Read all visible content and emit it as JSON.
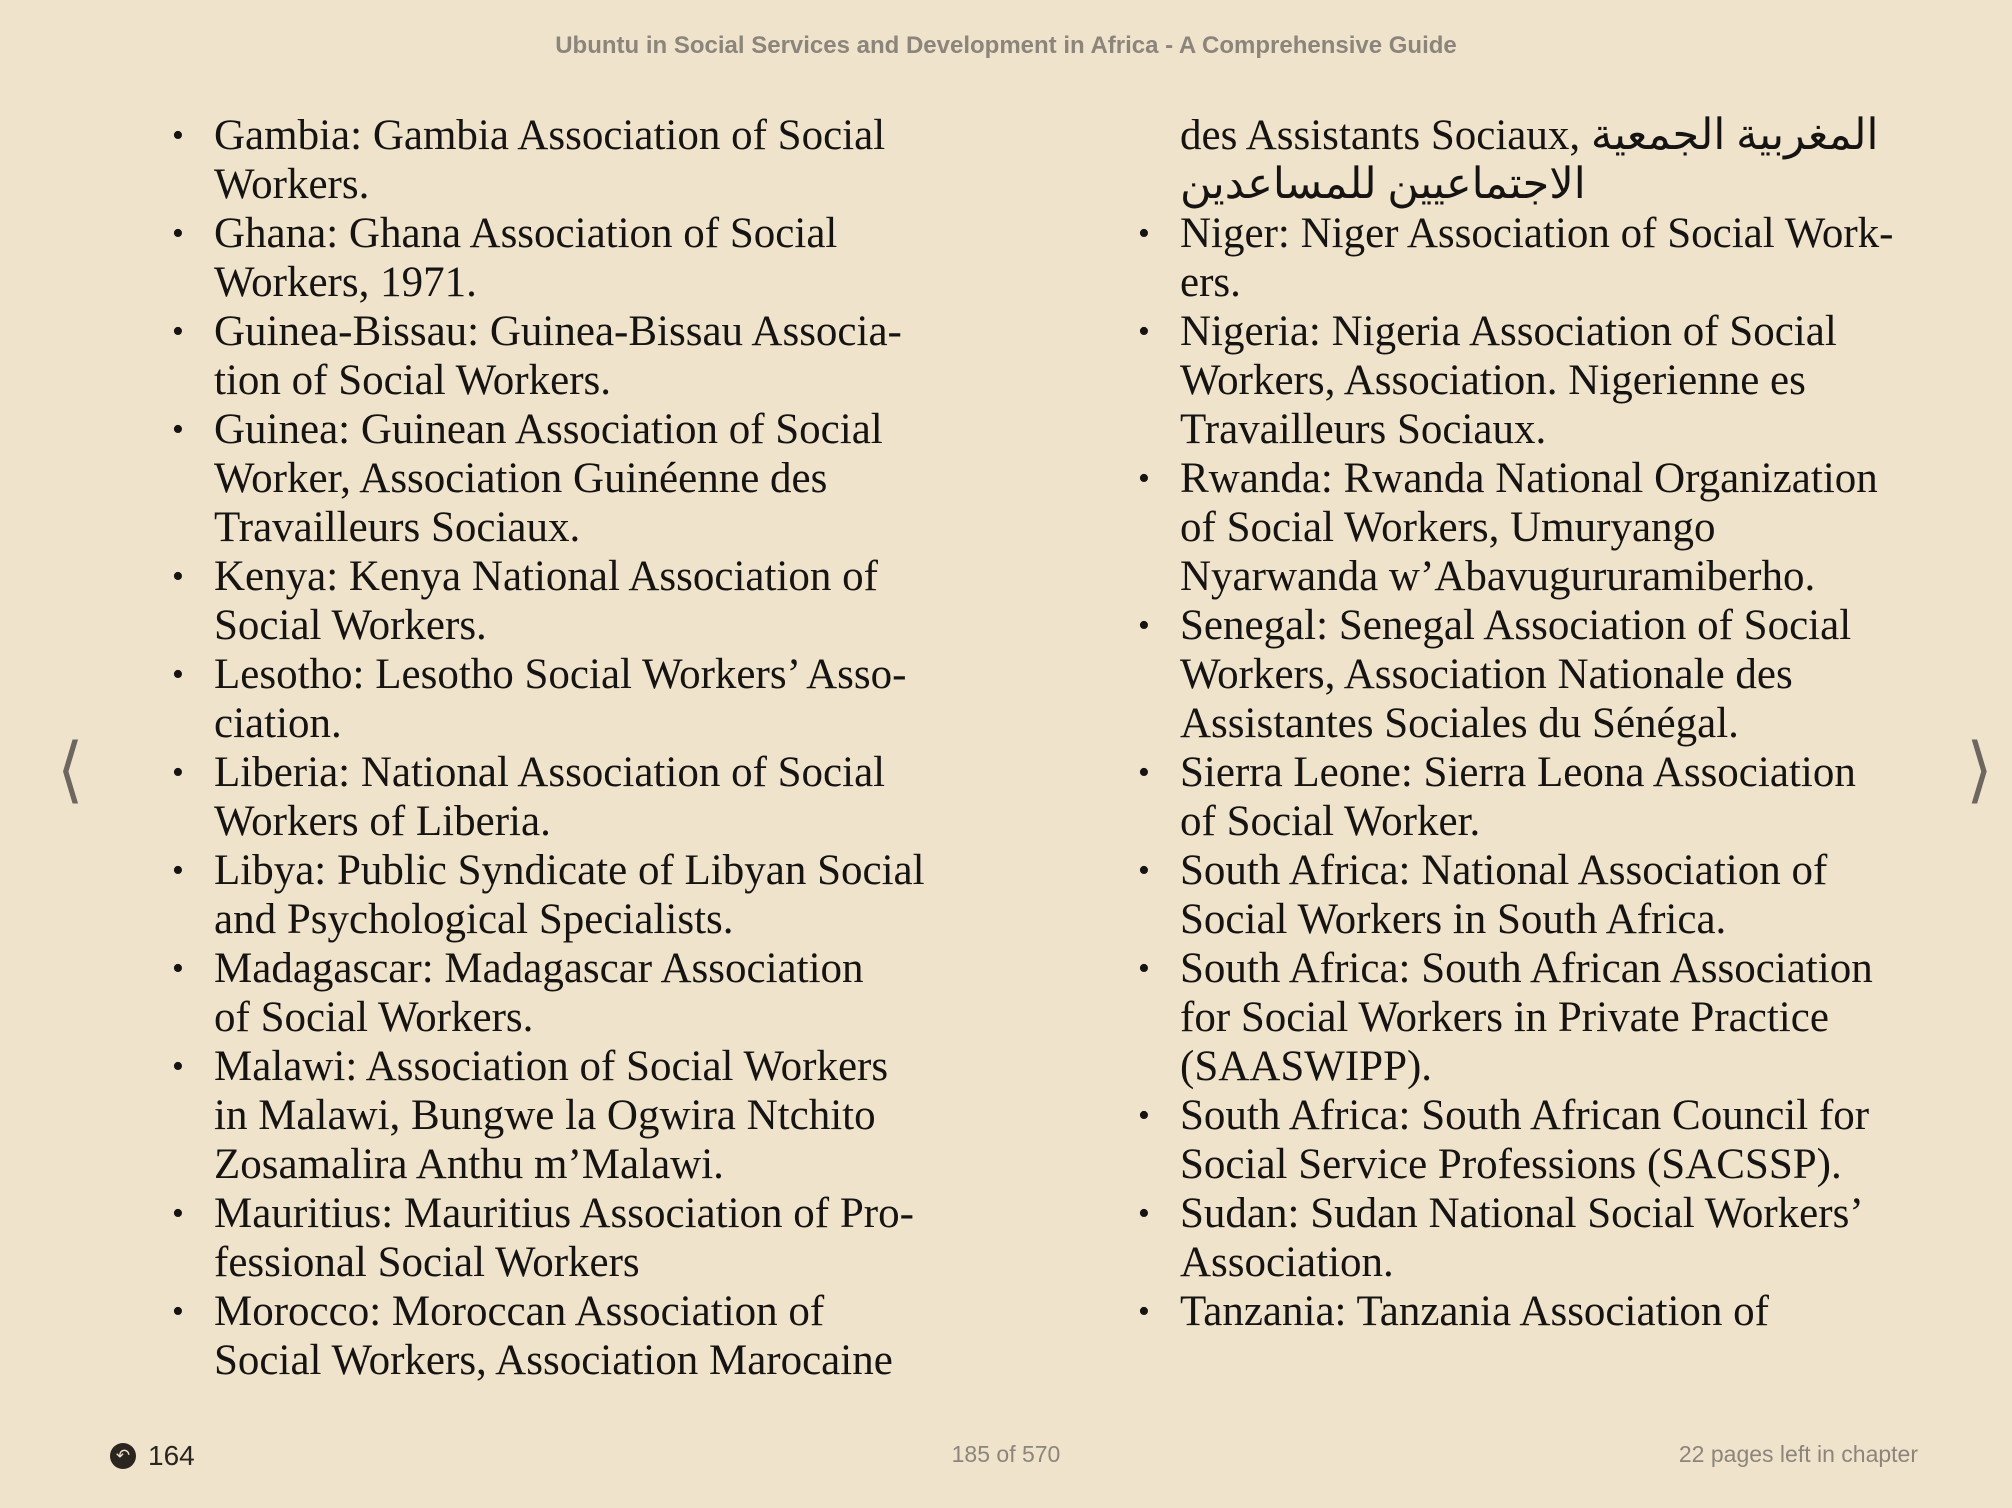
{
  "header": {
    "title": "Ubuntu in Social Services and Development in Africa - A Comprehensive Guide"
  },
  "left_column": [
    {
      "lines": [
        "Gambia: Gambia Association of Social",
        "Workers."
      ]
    },
    {
      "lines": [
        "Ghana: Ghana Association of Social",
        "Workers, 1971."
      ]
    },
    {
      "lines": [
        "Guinea-Bissau: Guinea-Bissau Associa-",
        "tion of Social Workers."
      ]
    },
    {
      "lines": [
        "Guinea: Guinean Association of Social",
        "Worker, Association Guinéenne des",
        "Travailleurs Sociaux."
      ]
    },
    {
      "lines": [
        "Kenya: Kenya National Association of",
        "Social Workers."
      ]
    },
    {
      "lines": [
        "Lesotho: Lesotho Social Workers’ Asso-",
        "ciation."
      ]
    },
    {
      "lines": [
        "Liberia: National Association of Social",
        "Workers of Liberia."
      ]
    },
    {
      "lines": [
        "Libya: Public Syndicate of Libyan Social",
        "and Psychological Specialists."
      ]
    },
    {
      "lines": [
        "Madagascar: Madagascar Association",
        "of Social Workers."
      ]
    },
    {
      "lines": [
        "Malawi: Association of Social Workers",
        "in Malawi, Bungwe la Ogwira Ntchito",
        "Zosamalira Anthu m’Malawi."
      ]
    },
    {
      "lines": [
        "Mauritius: Mauritius Association of Pro-",
        "fessional Social Workers"
      ]
    },
    {
      "lines": [
        "Morocco: Moroccan Association of",
        "Social Workers, Association Marocaine"
      ]
    }
  ],
  "right_column": {
    "continuation": {
      "text": "des Assistants Sociaux,",
      "arabic_1": "المغربية الجمعية",
      "arabic_2": "الاجتماعيين للمساعدين"
    },
    "items": [
      {
        "lines": [
          "Niger: Niger Association of Social Work-",
          "ers."
        ]
      },
      {
        "lines": [
          "Nigeria: Nigeria Association of Social",
          "Workers, Association. Nigerienne es",
          "Travailleurs Sociaux."
        ]
      },
      {
        "lines": [
          "Rwanda: Rwanda National Organization",
          "of Social Workers, Umuryango",
          "Nyarwanda w’Abavugururamiberho."
        ]
      },
      {
        "lines": [
          "Senegal: Senegal Association of Social",
          "Workers, Association Nationale des",
          "Assistantes Sociales du Sénégal."
        ]
      },
      {
        "lines": [
          "Sierra Leone: Sierra Leona Association",
          "of Social Worker."
        ]
      },
      {
        "lines": [
          "South Africa: National Association of",
          "Social Workers in South Africa."
        ]
      },
      {
        "lines": [
          "South Africa: South African Association",
          "for Social Workers in Private Practice",
          "(SAASWIPP)."
        ]
      },
      {
        "lines": [
          "South Africa: South African Council for",
          "Social Service Professions (SACSSP)."
        ]
      },
      {
        "lines": [
          "Sudan: Sudan National Social Workers’",
          "Association."
        ]
      },
      {
        "lines": [
          "Tanzania: Tanzania Association of"
        ]
      }
    ]
  },
  "footer": {
    "back_page": "164",
    "page_position": "185 of 570",
    "chapter_remaining": "22 pages left in chapter"
  },
  "nav": {
    "prev_icon": "chevron-left-icon",
    "next_icon": "chevron-right-icon",
    "back_icon": "return-arrow-icon"
  },
  "colors": {
    "background": "#efe3cc",
    "text": "#161412",
    "muted": "#8c857b"
  }
}
